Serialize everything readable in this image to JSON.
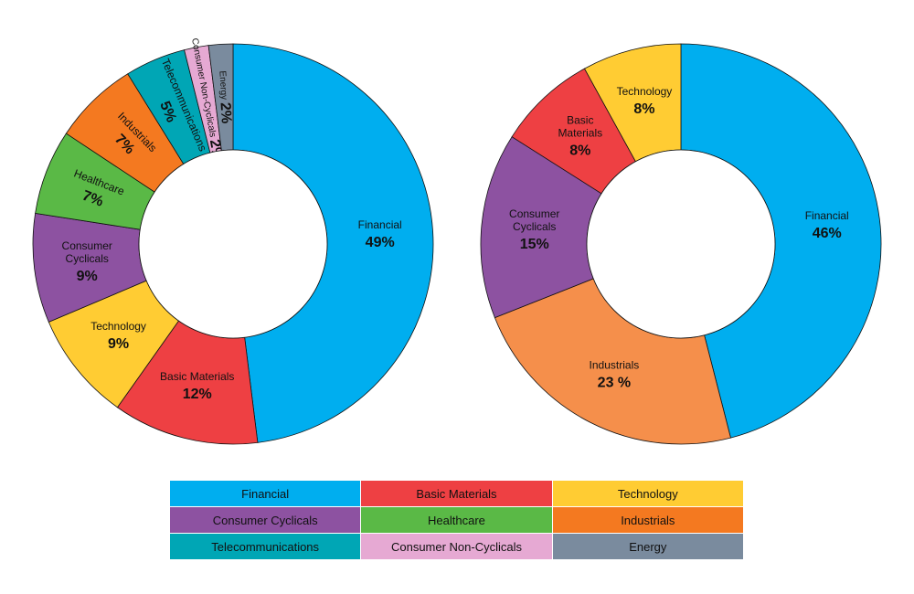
{
  "chart_data": [
    {
      "type": "pie",
      "donut": true,
      "start": "top, clockwise",
      "slices": [
        {
          "label": "Financial",
          "pct_label": "49%",
          "value": 49,
          "color": "#00AEEF"
        },
        {
          "label": "Basic Materials",
          "pct_label": "12%",
          "value": 12,
          "color": "#EE4043"
        },
        {
          "label": "Technology",
          "pct_label": "9%",
          "value": 9,
          "color": "#FFCC33"
        },
        {
          "label": "Consumer\nCyclicals",
          "pct_label": "9%",
          "value": 9,
          "color": "#8D52A1"
        },
        {
          "label": "Healthcare",
          "pct_label": "7%",
          "value": 7,
          "color": "#5AB946"
        },
        {
          "label": "Industrials",
          "pct_label": "7%",
          "value": 7,
          "color": "#F47920"
        },
        {
          "label": "Telecommunications",
          "pct_label": "5%",
          "value": 5,
          "color": "#00A6B5"
        },
        {
          "label": "Consumer Non-Cyclicals",
          "pct_label": "2%",
          "value": 2,
          "color": "#E6A9D3"
        },
        {
          "label": "Energy",
          "pct_label": "2%",
          "value": 2,
          "color": "#7A8B9E"
        }
      ]
    },
    {
      "type": "pie",
      "donut": true,
      "start": "top, clockwise",
      "slices": [
        {
          "label": "Financial",
          "pct_label": "46%",
          "value": 46,
          "color": "#00AEEF"
        },
        {
          "label": "Industrials",
          "pct_label": "23 %",
          "value": 23,
          "color": "#F58F4B"
        },
        {
          "label": "Consumer\nCyclicals",
          "pct_label": "15%",
          "value": 15,
          "color": "#8D52A1"
        },
        {
          "label": "Basic\nMaterials",
          "pct_label": "8%",
          "value": 8,
          "color": "#EE4043"
        },
        {
          "label": "Technology",
          "pct_label": "8%",
          "value": 8,
          "color": "#FFCC33"
        }
      ]
    }
  ],
  "legend": [
    {
      "label": "Financial",
      "color": "#00AEEF"
    },
    {
      "label": "Basic Materials",
      "color": "#EE4043"
    },
    {
      "label": "Technology",
      "color": "#FFCC33"
    },
    {
      "label": "Consumer Cyclicals",
      "color": "#8D52A1"
    },
    {
      "label": "Healthcare",
      "color": "#5AB946"
    },
    {
      "label": "Industrials",
      "color": "#F47920"
    },
    {
      "label": "Telecommunications",
      "color": "#00A6B5"
    },
    {
      "label": "Consumer Non-Cyclicals",
      "color": "#E6A9D3"
    },
    {
      "label": "Energy",
      "color": "#7A8B9E"
    }
  ]
}
